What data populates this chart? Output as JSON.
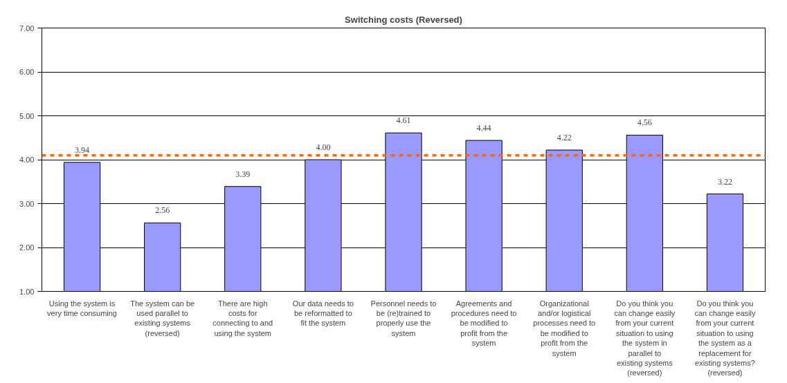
{
  "chart_data": {
    "type": "bar",
    "title": "Switching costs (Reversed)",
    "categories": [
      "Using the system is very time consuming",
      "The system can be used parallel to existing systems (reversed)",
      "There are high costs for connecting to and using the system",
      "Our data needs to be reformatted to fit the system",
      "Personnel needs to be (re)trained to properly use the system",
      "Agreements and procedures need to be modified to profit from the system",
      "Organizational and/or logistical processes need to be modified to profit from the system",
      "Do you think you can change easily from your current situation to using the system in parallel to existing systems (reversed)",
      "Do you think you can change easily from your current situation to using the system as a replacement for existing systems? (reversed)"
    ],
    "values": [
      3.94,
      2.56,
      3.39,
      4.0,
      4.61,
      4.44,
      4.22,
      4.56,
      3.22
    ],
    "color": "#9999ff",
    "value_labels": [
      "3.94",
      "2.56",
      "3.39",
      "4.00",
      "4.61",
      "4.44",
      "4.22",
      "4.56",
      "3.22"
    ],
    "ylim": [
      1,
      7
    ],
    "yticks": [
      {
        "value": 1,
        "label": "1.00"
      },
      {
        "value": 2,
        "label": "2.00"
      },
      {
        "value": 3,
        "label": "3.00"
      },
      {
        "value": 4,
        "label": "4.00"
      },
      {
        "value": 5,
        "label": "5.00"
      },
      {
        "value": 6,
        "label": "6.00"
      },
      {
        "value": 7,
        "label": "7.00"
      }
    ],
    "grid": "y",
    "ref_lines": [
      {
        "axis": "y",
        "value": 4.1,
        "color": "#ff6600",
        "line_style": "dashed"
      }
    ]
  }
}
